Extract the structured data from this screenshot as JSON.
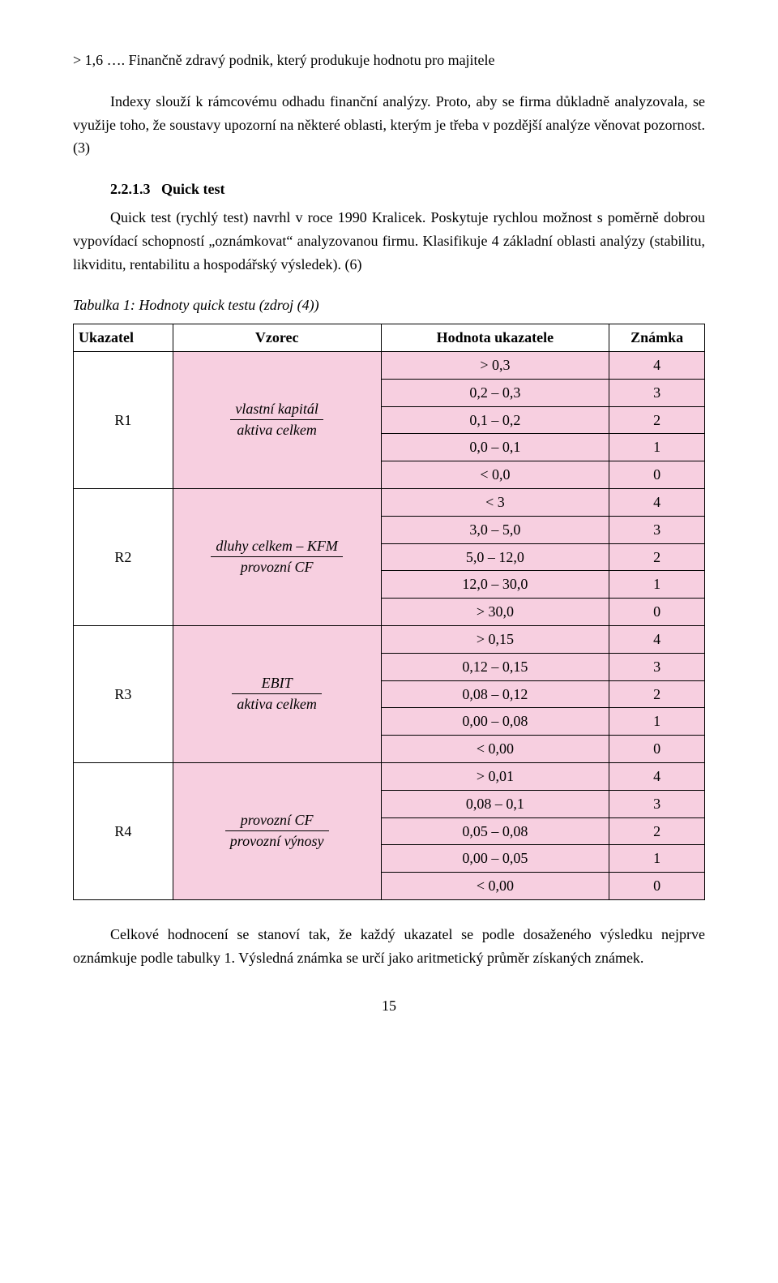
{
  "intro": {
    "line1": "> 1,6 …. Finančně zdravý podnik, který produkuje hodnotu pro majitele",
    "line2": "Indexy slouží k rámcovému odhadu finanční analýzy. Proto, aby se firma důkladně analyzovala, se využije toho, že soustavy upozorní na některé oblasti, kterým je třeba v pozdější analýze věnovat pozornost.(3)"
  },
  "section": {
    "number": "2.2.1.3",
    "title": "Quick test"
  },
  "quick_text": "Quick test (rychlý test) navrhl v roce 1990 Kralicek. Poskytuje rychlou možnost s poměrně dobrou vypovídací schopností „oznámkovat“ analyzovanou firmu. Klasifikuje 4 základní oblasti analýzy (stabilitu, likviditu, rentabilitu a hospodářský výsledek). (6)",
  "table": {
    "caption": "Tabulka 1: Hodnoty quick testu (zdroj (4))",
    "headers": {
      "c1": "Ukazatel",
      "c2": "Vzorec",
      "c3": "Hodnota ukazatele",
      "c4": "Známka"
    },
    "colors": {
      "pink": "#f7cfe0",
      "white": "#ffffff",
      "border": "#000000"
    },
    "rows": [
      {
        "ukazatel": "R1",
        "vzorec": {
          "num": "vlastní kapitál",
          "den": "aktiva celkem"
        },
        "values": [
          {
            "h": "> 0,3",
            "z": "4"
          },
          {
            "h": "0,2 – 0,3",
            "z": "3"
          },
          {
            "h": "0,1 – 0,2",
            "z": "2"
          },
          {
            "h": "0,0 – 0,1",
            "z": "1"
          },
          {
            "h": "< 0,0",
            "z": "0"
          }
        ]
      },
      {
        "ukazatel": "R2",
        "vzorec": {
          "num": "dluhy celkem – KFM",
          "den": "provozní CF"
        },
        "values": [
          {
            "h": "< 3",
            "z": "4"
          },
          {
            "h": "3,0 – 5,0",
            "z": "3"
          },
          {
            "h": "5,0 – 12,0",
            "z": "2"
          },
          {
            "h": "12,0 – 30,0",
            "z": "1"
          },
          {
            "h": "> 30,0",
            "z": "0"
          }
        ]
      },
      {
        "ukazatel": "R3",
        "vzorec": {
          "num": "EBIT",
          "den": "aktiva celkem"
        },
        "values": [
          {
            "h": "> 0,15",
            "z": "4"
          },
          {
            "h": "0,12 – 0,15",
            "z": "3"
          },
          {
            "h": "0,08 – 0,12",
            "z": "2"
          },
          {
            "h": "0,00 – 0,08",
            "z": "1"
          },
          {
            "h": "< 0,00",
            "z": "0"
          }
        ]
      },
      {
        "ukazatel": "R4",
        "vzorec": {
          "num": "provozní CF",
          "den": "provozní výnosy"
        },
        "values": [
          {
            "h": "> 0,01",
            "z": "4"
          },
          {
            "h": "0,08 – 0,1",
            "z": "3"
          },
          {
            "h": "0,05 – 0,08",
            "z": "2"
          },
          {
            "h": "0,00 – 0,05",
            "z": "1"
          },
          {
            "h": "< 0,00",
            "z": "0"
          }
        ]
      }
    ]
  },
  "closing": "Celkové hodnocení se stanoví tak, že každý ukazatel se podle dosaženého výsledku nejprve oznámkuje podle tabulky 1. Výsledná známka se určí jako aritmetický průměr získaných známek.",
  "page_number": "15"
}
